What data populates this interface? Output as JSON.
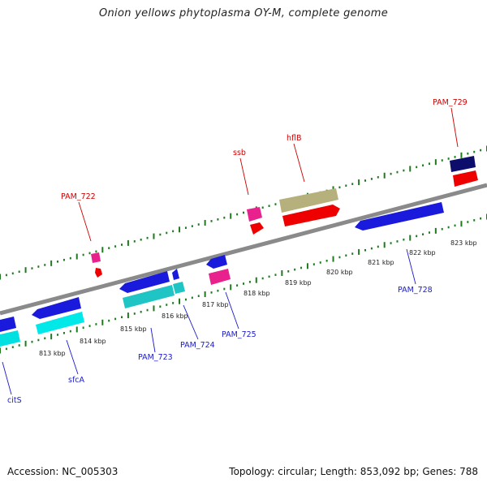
{
  "title": "Onion yellows phytoplasma OY-M, complete genome",
  "footer": {
    "accession": "Accession: NC_005303",
    "topology": "Topology: circular; Length: 853,092 bp; Genes: 788"
  },
  "colors": {
    "backbone": "#8a8a8a",
    "tick": "#1f7a1f",
    "label_forward": "#cc0000",
    "label_reverse": "#1a1acc"
  },
  "axis": {
    "unit": "kbp",
    "ticks": [
      "813 kbp",
      "814 kbp",
      "815 kbp",
      "816 kbp",
      "817 kbp",
      "818 kbp",
      "819 kbp",
      "820 kbp",
      "821 kbp",
      "822 kbp",
      "823 kbp"
    ]
  },
  "genes": [
    {
      "name": "PAM_722",
      "strand": "+"
    },
    {
      "name": "ssb",
      "strand": "+"
    },
    {
      "name": "hflB",
      "strand": "+"
    },
    {
      "name": "PAM_729",
      "strand": "+"
    },
    {
      "name": "citS",
      "strand": "-"
    },
    {
      "name": "sfcA",
      "strand": "-"
    },
    {
      "name": "PAM_723",
      "strand": "-"
    },
    {
      "name": "PAM_724",
      "strand": "-"
    },
    {
      "name": "PAM_725",
      "strand": "-"
    },
    {
      "name": "PAM_728",
      "strand": "-"
    }
  ]
}
